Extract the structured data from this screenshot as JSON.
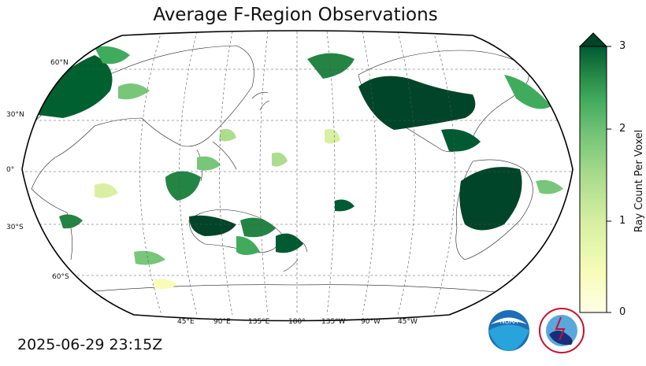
{
  "title": "Average F-Region Observations",
  "timestamp": "2025-06-29 23:15Z",
  "colorbar": {
    "label": "Ray Count Per Voxel",
    "ticks": [
      "0",
      "1",
      "2",
      "3"
    ],
    "low_color": "#ffffe5",
    "high_color": "#004529"
  },
  "lat_labels": [
    "60°N",
    "30°N",
    "0°",
    "30°S",
    "60°S"
  ],
  "lon_labels": [
    "45°E",
    "90°E",
    "135°E",
    "180°",
    "135°W",
    "90°W",
    "45°W"
  ],
  "logos": {
    "noaa": "NOAA",
    "nws": "NATIONAL WEATHER SERVICE"
  },
  "map": {
    "projection": "robinson",
    "central_longitude": 180,
    "grid": true
  }
}
